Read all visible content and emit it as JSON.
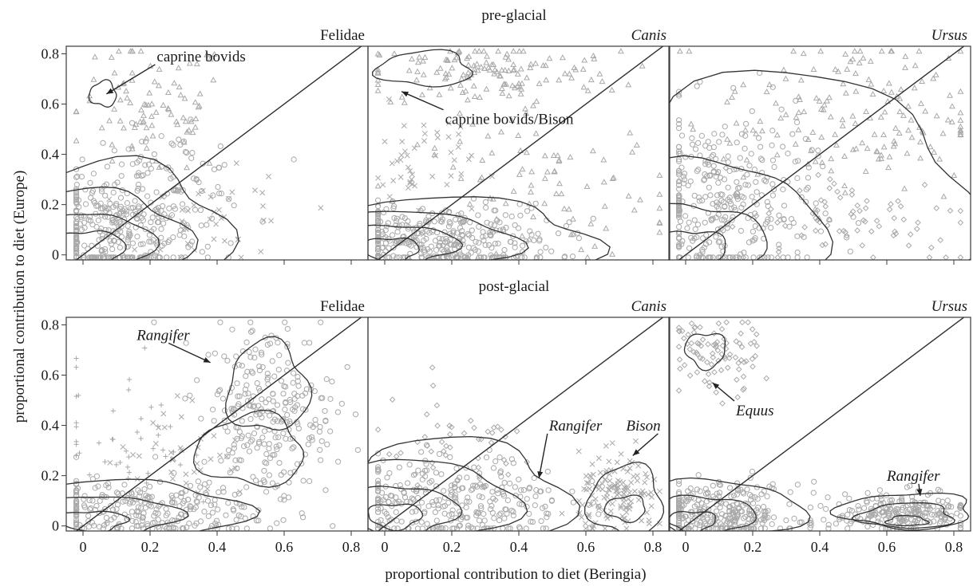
{
  "chart_data": {
    "type": "scatter",
    "xlabel": "proportional contribution to diet (Beringia)",
    "ylabel": "proportional contribution to diet (Europe)",
    "xlim": [
      -0.05,
      0.85
    ],
    "ylim": [
      -0.02,
      0.83
    ],
    "xticks": [
      "0",
      "0.2",
      "0.4",
      "0.6",
      "0.8"
    ],
    "yticks": [
      "0",
      "0.2",
      "0.4",
      "0.6",
      "0.8"
    ],
    "rows": [
      {
        "title": "pre-glacial",
        "panels": [
          {
            "name": "Felidae",
            "italic": false,
            "clusters": [
              {
                "shape": "circle",
                "cx": 0.08,
                "cy": 0.08,
                "sx": 0.13,
                "sy": 0.12,
                "n": 340
              },
              {
                "shape": "triangle",
                "cx": 0.2,
                "cy": 0.58,
                "sx": 0.12,
                "sy": 0.14,
                "n": 90
              },
              {
                "shape": "cross",
                "cx": 0.42,
                "cy": 0.12,
                "sx": 0.12,
                "sy": 0.1,
                "n": 40
              },
              {
                "shape": "circle",
                "cx": 0.25,
                "cy": 0.3,
                "sx": 0.12,
                "sy": 0.1,
                "n": 90
              }
            ],
            "contours": [
              {
                "cx": 0.02,
                "cy": 0.02,
                "rx": 0.1,
                "ry": 0.08
              },
              {
                "cx": 0.04,
                "cy": 0.04,
                "rx": 0.16,
                "ry": 0.13
              },
              {
                "cx": 0.06,
                "cy": 0.06,
                "rx": 0.24,
                "ry": 0.2
              },
              {
                "cx": 0.1,
                "cy": 0.1,
                "rx": 0.33,
                "ry": 0.26
              },
              {
                "cx": 0.06,
                "cy": 0.64,
                "rx": 0.04,
                "ry": 0.05
              }
            ],
            "annotations": [
              {
                "text": "caprine bovids",
                "italic": false,
                "x": 0.22,
                "y": 0.77,
                "ax": 0.07,
                "ay": 0.64
              }
            ]
          },
          {
            "name": "Canis",
            "italic": true,
            "clusters": [
              {
                "shape": "triangle",
                "cx": 0.3,
                "cy": 0.72,
                "sx": 0.2,
                "sy": 0.07,
                "n": 140
              },
              {
                "shape": "circle",
                "cx": 0.15,
                "cy": 0.06,
                "sx": 0.18,
                "sy": 0.07,
                "n": 360
              },
              {
                "shape": "triangle",
                "cx": 0.5,
                "cy": 0.25,
                "sx": 0.2,
                "sy": 0.15,
                "n": 90
              },
              {
                "shape": "cross",
                "cx": 0.1,
                "cy": 0.35,
                "sx": 0.08,
                "sy": 0.12,
                "n": 50
              }
            ],
            "contours": [
              {
                "cx": 0.02,
                "cy": 0.02,
                "rx": 0.08,
                "ry": 0.05
              },
              {
                "cx": 0.05,
                "cy": 0.04,
                "rx": 0.16,
                "ry": 0.08
              },
              {
                "cx": 0.1,
                "cy": 0.05,
                "rx": 0.28,
                "ry": 0.12
              },
              {
                "cx": 0.2,
                "cy": 0.06,
                "rx": 0.42,
                "ry": 0.16
              },
              {
                "cx": 0.12,
                "cy": 0.74,
                "rx": 0.14,
                "ry": 0.07
              }
            ],
            "annotations": [
              {
                "text": "caprine bovids/Bison",
                "italic": false,
                "x": 0.18,
                "y": 0.52,
                "ax": 0.05,
                "ay": 0.65
              }
            ]
          },
          {
            "name": "Ursus",
            "italic": true,
            "clusters": [
              {
                "shape": "circle",
                "cx": 0.1,
                "cy": 0.2,
                "sx": 0.14,
                "sy": 0.18,
                "n": 340
              },
              {
                "shape": "triangle",
                "cx": 0.5,
                "cy": 0.55,
                "sx": 0.2,
                "sy": 0.17,
                "n": 170
              },
              {
                "shape": "diamond",
                "cx": 0.5,
                "cy": 0.15,
                "sx": 0.2,
                "sy": 0.1,
                "n": 80
              }
            ],
            "contours": [
              {
                "cx": 0.02,
                "cy": 0.02,
                "rx": 0.1,
                "ry": 0.08
              },
              {
                "cx": 0.05,
                "cy": 0.05,
                "rx": 0.18,
                "ry": 0.15
              },
              {
                "cx": 0.1,
                "cy": 0.1,
                "rx": 0.3,
                "ry": 0.27
              },
              {
                "cx": 0.3,
                "cy": 0.25,
                "rx": 0.55,
                "ry": 0.45
              }
            ],
            "annotations": []
          }
        ]
      },
      {
        "title": "post-glacial",
        "panels": [
          {
            "name": "Felidae",
            "italic": false,
            "clusters": [
              {
                "shape": "circle",
                "cx": 0.55,
                "cy": 0.45,
                "sx": 0.1,
                "sy": 0.18,
                "n": 280
              },
              {
                "shape": "circle",
                "cx": 0.15,
                "cy": 0.06,
                "sx": 0.18,
                "sy": 0.06,
                "n": 260
              },
              {
                "shape": "plus",
                "cx": 0.12,
                "cy": 0.35,
                "sx": 0.1,
                "sy": 0.15,
                "n": 45
              },
              {
                "shape": "cross",
                "cx": 0.3,
                "cy": 0.3,
                "sx": 0.1,
                "sy": 0.1,
                "n": 40
              }
            ],
            "contours": [
              {
                "cx": 0.03,
                "cy": 0.02,
                "rx": 0.1,
                "ry": 0.04
              },
              {
                "cx": 0.08,
                "cy": 0.04,
                "rx": 0.2,
                "ry": 0.08
              },
              {
                "cx": 0.15,
                "cy": 0.06,
                "rx": 0.32,
                "ry": 0.12
              },
              {
                "cx": 0.55,
                "cy": 0.55,
                "rx": 0.12,
                "ry": 0.18
              },
              {
                "cx": 0.5,
                "cy": 0.3,
                "rx": 0.16,
                "ry": 0.14
              }
            ],
            "annotations": [
              {
                "text": "Rangifer",
                "italic": true,
                "x": 0.16,
                "y": 0.74,
                "ax": 0.38,
                "ay": 0.65
              }
            ]
          },
          {
            "name": "Canis",
            "italic": true,
            "clusters": [
              {
                "shape": "circle",
                "cx": 0.2,
                "cy": 0.1,
                "sx": 0.17,
                "sy": 0.09,
                "n": 300
              },
              {
                "shape": "cross",
                "cx": 0.7,
                "cy": 0.12,
                "sx": 0.06,
                "sy": 0.08,
                "n": 140
              },
              {
                "shape": "diamond",
                "cx": 0.2,
                "cy": 0.3,
                "sx": 0.14,
                "sy": 0.1,
                "n": 50
              }
            ],
            "contours": [
              {
                "cx": 0.03,
                "cy": 0.04,
                "rx": 0.08,
                "ry": 0.05
              },
              {
                "cx": 0.06,
                "cy": 0.06,
                "rx": 0.15,
                "ry": 0.1
              },
              {
                "cx": 0.12,
                "cy": 0.09,
                "rx": 0.26,
                "ry": 0.17
              },
              {
                "cx": 0.2,
                "cy": 0.12,
                "rx": 0.34,
                "ry": 0.22
              },
              {
                "cx": 0.72,
                "cy": 0.1,
                "rx": 0.11,
                "ry": 0.14
              },
              {
                "cx": 0.72,
                "cy": 0.07,
                "rx": 0.06,
                "ry": 0.05
              }
            ],
            "annotations": [
              {
                "text": "Rangifer",
                "italic": true,
                "x": 0.49,
                "y": 0.38,
                "ax": 0.46,
                "ay": 0.19
              },
              {
                "text": "Bison",
                "italic": true,
                "x": 0.72,
                "y": 0.38,
                "ax": 0.74,
                "ay": 0.28
              }
            ]
          },
          {
            "name": "Ursus",
            "italic": true,
            "clusters": [
              {
                "shape": "circle",
                "cx": 0.1,
                "cy": 0.05,
                "sx": 0.12,
                "sy": 0.06,
                "n": 300
              },
              {
                "shape": "circle",
                "cx": 0.65,
                "cy": 0.05,
                "sx": 0.1,
                "sy": 0.04,
                "n": 220
              },
              {
                "shape": "diamond",
                "cx": 0.08,
                "cy": 0.68,
                "sx": 0.07,
                "sy": 0.08,
                "n": 90
              }
            ],
            "contours": [
              {
                "cx": 0.02,
                "cy": 0.02,
                "rx": 0.07,
                "ry": 0.04
              },
              {
                "cx": 0.06,
                "cy": 0.04,
                "rx": 0.14,
                "ry": 0.08
              },
              {
                "cx": 0.1,
                "cy": 0.06,
                "rx": 0.24,
                "ry": 0.12
              },
              {
                "cx": 0.66,
                "cy": 0.02,
                "rx": 0.06,
                "ry": 0.02
              },
              {
                "cx": 0.66,
                "cy": 0.04,
                "rx": 0.14,
                "ry": 0.05
              },
              {
                "cx": 0.66,
                "cy": 0.06,
                "rx": 0.2,
                "ry": 0.07
              },
              {
                "cx": 0.06,
                "cy": 0.7,
                "rx": 0.06,
                "ry": 0.07
              }
            ],
            "annotations": [
              {
                "text": "Equus",
                "italic": true,
                "x": 0.15,
                "y": 0.44,
                "ax": 0.08,
                "ay": 0.57
              },
              {
                "text": "Rangifer",
                "italic": true,
                "x": 0.6,
                "y": 0.18,
                "ax": 0.7,
                "ay": 0.12
              }
            ]
          }
        ]
      }
    ]
  }
}
